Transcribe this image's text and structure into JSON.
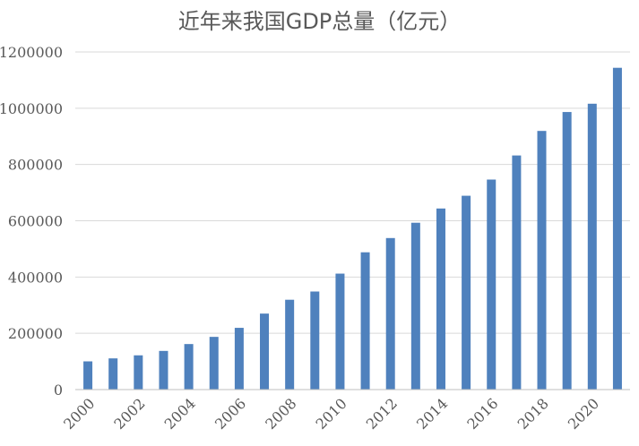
{
  "chart_data": {
    "type": "bar",
    "title": "近年来我国GDP总量（亿元）",
    "xlabel": "",
    "ylabel": "",
    "categories": [
      "2000",
      "2001",
      "2002",
      "2003",
      "2004",
      "2005",
      "2006",
      "2007",
      "2008",
      "2009",
      "2010",
      "2011",
      "2012",
      "2013",
      "2014",
      "2015",
      "2016",
      "2017",
      "2018",
      "2019",
      "2020",
      "2021"
    ],
    "x_tick_labels": [
      "2000",
      "2002",
      "2004",
      "2006",
      "2008",
      "2010",
      "2012",
      "2014",
      "2016",
      "2018",
      "2020"
    ],
    "values": [
      100280,
      110863,
      121717,
      137422,
      161840,
      187319,
      219439,
      270092,
      319245,
      348518,
      412119,
      487940,
      538580,
      592963,
      643563,
      688858,
      746395,
      832036,
      919281,
      986515,
      1015986,
      1143670
    ],
    "ylim": [
      0,
      1200000
    ],
    "yticks": [
      0,
      200000,
      400000,
      600000,
      800000,
      1000000,
      1200000
    ],
    "grid": true,
    "legend": "none",
    "colors": {
      "bar": "#4F81BD",
      "grid": "#D9D9D9",
      "axis": "#BFBFBF",
      "text": "#595959"
    }
  }
}
